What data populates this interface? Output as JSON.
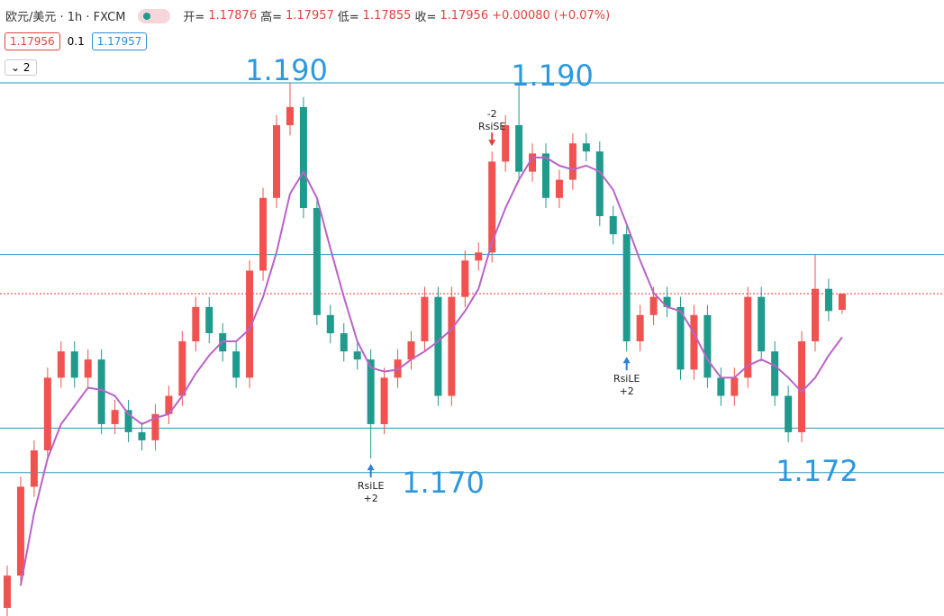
{
  "header": {
    "symbol": "欧元/美元 · 1h · FXCM",
    "open_label": "开=",
    "open": "1.17876",
    "high_label": "高=",
    "high": "1.17957",
    "low_label": "低=",
    "low": "1.17855",
    "close_label": "收=",
    "close": "1.17956",
    "change": "+0.00080 (+0.07%)",
    "sell": "1.17956",
    "spread": "0.1",
    "buy": "1.17957",
    "collapse": "2"
  },
  "chart_data": {
    "type": "candlestick",
    "categories": [
      null,
      null,
      null,
      null,
      null,
      null,
      null,
      null,
      null,
      null,
      null,
      null,
      null,
      null,
      null,
      null,
      null,
      null,
      null,
      null,
      null,
      null,
      null,
      null,
      null,
      null,
      null,
      null,
      null,
      null,
      null,
      null,
      null,
      null,
      null,
      null,
      null,
      null,
      null,
      null,
      null,
      null,
      null,
      null,
      null,
      null,
      null,
      null,
      null,
      null,
      null,
      null,
      null,
      null,
      null,
      null,
      null,
      null,
      null,
      null,
      null,
      null,
      null
    ],
    "open": [
      1.164,
      1.1656,
      1.17,
      1.1718,
      1.1754,
      1.1767,
      1.1754,
      1.1763,
      1.1731,
      1.1738,
      1.1727,
      1.1723,
      1.1736,
      1.1745,
      1.1772,
      1.1789,
      1.1776,
      1.1767,
      1.1754,
      1.1807,
      1.1843,
      1.1879,
      1.1888,
      1.1838,
      1.1785,
      1.1776,
      1.1767,
      1.1763,
      1.1731,
      1.1754,
      1.1763,
      1.1772,
      1.1794,
      1.1745,
      1.1794,
      1.1812,
      1.1816,
      1.1861,
      1.1879,
      1.1856,
      1.1865,
      1.1843,
      1.1852,
      1.187,
      1.1866,
      1.1834,
      1.1825,
      1.1772,
      1.1785,
      1.1794,
      1.1789,
      1.1758,
      1.1785,
      1.1754,
      1.1745,
      1.1754,
      1.1794,
      1.1767,
      1.1745,
      1.1727,
      1.1772,
      1.1798,
      1.17876
    ],
    "high": [
      1.1661,
      1.1705,
      1.1723,
      1.1759,
      1.1772,
      1.1772,
      1.1768,
      1.1768,
      1.1743,
      1.1743,
      1.1732,
      1.1741,
      1.175,
      1.1777,
      1.1794,
      1.1794,
      1.1781,
      1.1772,
      1.1812,
      1.1848,
      1.1884,
      1.19,
      1.1893,
      1.1843,
      1.179,
      1.1781,
      1.1772,
      1.1768,
      1.1759,
      1.1768,
      1.1777,
      1.1799,
      1.1799,
      1.1799,
      1.1817,
      1.1821,
      1.1866,
      1.1884,
      1.19,
      1.187,
      1.187,
      1.1857,
      1.1875,
      1.1875,
      1.1871,
      1.1839,
      1.183,
      1.179,
      1.1799,
      1.1799,
      1.1794,
      1.179,
      1.179,
      1.1759,
      1.1759,
      1.1799,
      1.1799,
      1.1772,
      1.175,
      1.1777,
      1.1815,
      1.1803,
      1.17957
    ],
    "low": [
      1.1635,
      1.1651,
      1.1695,
      1.1713,
      1.1749,
      1.1749,
      1.1749,
      1.1726,
      1.1726,
      1.1722,
      1.1718,
      1.1718,
      1.1731,
      1.174,
      1.1767,
      1.1771,
      1.1762,
      1.1749,
      1.1749,
      1.1802,
      1.1838,
      1.1874,
      1.1833,
      1.178,
      1.1771,
      1.1762,
      1.1758,
      1.1714,
      1.1726,
      1.1749,
      1.1758,
      1.1767,
      1.174,
      1.174,
      1.1789,
      1.1807,
      1.1811,
      1.1856,
      1.1851,
      1.1851,
      1.1838,
      1.1838,
      1.1847,
      1.1861,
      1.1829,
      1.182,
      1.1767,
      1.1767,
      1.178,
      1.1784,
      1.1753,
      1.1753,
      1.1749,
      1.174,
      1.174,
      1.1749,
      1.1762,
      1.174,
      1.1722,
      1.1722,
      1.1767,
      1.1782,
      1.17855
    ],
    "close": [
      1.1656,
      1.17,
      1.1718,
      1.1754,
      1.1767,
      1.1754,
      1.1763,
      1.1731,
      1.1738,
      1.1727,
      1.1723,
      1.1736,
      1.1745,
      1.1772,
      1.1789,
      1.1776,
      1.1767,
      1.1754,
      1.1807,
      1.1843,
      1.1879,
      1.1888,
      1.1838,
      1.1785,
      1.1776,
      1.1767,
      1.1763,
      1.1731,
      1.1754,
      1.1763,
      1.1772,
      1.1794,
      1.1745,
      1.1794,
      1.1812,
      1.1816,
      1.1861,
      1.1879,
      1.1856,
      1.1865,
      1.1843,
      1.1852,
      1.187,
      1.1866,
      1.1834,
      1.1825,
      1.1772,
      1.1785,
      1.1794,
      1.1789,
      1.1758,
      1.1785,
      1.1754,
      1.1745,
      1.1754,
      1.1794,
      1.1767,
      1.1745,
      1.1727,
      1.1772,
      1.1798,
      1.1787,
      1.17956
    ],
    "up_color": "#f0524f",
    "down_color": "#1f9a8c",
    "ma": {
      "color": "#b963c8",
      "values": [
        null,
        1.1651,
        1.1687,
        1.1714,
        1.1731,
        1.174,
        1.1749,
        1.1748,
        1.1745,
        1.1736,
        1.1731,
        1.1734,
        1.1736,
        1.1745,
        1.1756,
        1.1765,
        1.1772,
        1.1772,
        1.1778,
        1.1794,
        1.1816,
        1.1845,
        1.1856,
        1.1843,
        1.1818,
        1.1794,
        1.1772,
        1.1759,
        1.1757,
        1.1758,
        1.1763,
        1.1767,
        1.1772,
        1.1778,
        1.1787,
        1.1798,
        1.1821,
        1.1838,
        1.1852,
        1.1863,
        1.1863,
        1.1859,
        1.1857,
        1.1859,
        1.1856,
        1.1847,
        1.183,
        1.1812,
        1.1796,
        1.1789,
        1.1787,
        1.1776,
        1.1763,
        1.1754,
        1.1754,
        1.176,
        1.1763,
        1.176,
        1.1754,
        1.1747,
        1.1754,
        1.1765,
        1.1774
      ]
    },
    "levels": {
      "color": "#2a93b8",
      "values": [
        1.19,
        1.1815,
        1.1729,
        1.1707
      ]
    },
    "price_line": {
      "color": "#e53935",
      "value": 1.17956
    },
    "ylim": [
      1.1636,
      1.1941
    ],
    "annotations": [
      {
        "text": "1.190"
      },
      {
        "text": "1.190"
      },
      {
        "text": "1.170"
      },
      {
        "text": "1.172"
      }
    ],
    "signals": [
      {
        "label": "RsiLE",
        "qty": "+2",
        "side": "long"
      },
      {
        "label": "RsiSE",
        "qty": "-2",
        "side": "short"
      },
      {
        "label": "RsiLE",
        "qty": "+2",
        "side": "long"
      }
    ]
  }
}
